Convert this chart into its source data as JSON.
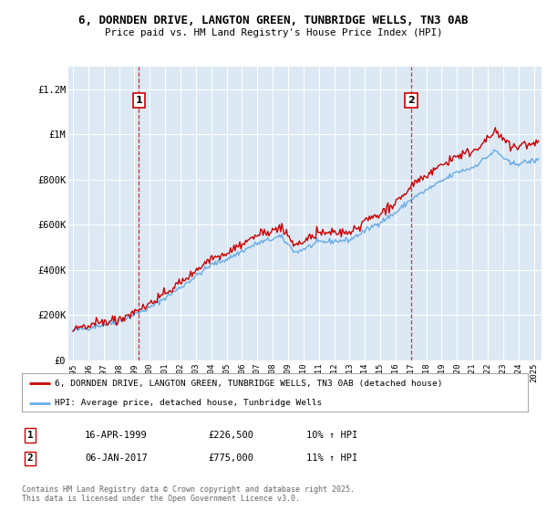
{
  "title1": "6, DORNDEN DRIVE, LANGTON GREEN, TUNBRIDGE WELLS, TN3 0AB",
  "title2": "Price paid vs. HM Land Registry's House Price Index (HPI)",
  "bg_color": "#dce9f5",
  "line1_color": "#cc0000",
  "line2_color": "#6aace6",
  "purchase1_year": 1999.29,
  "purchase1_price": 226500,
  "purchase1_date": "16-APR-1999",
  "purchase1_hpi": "10% ↑ HPI",
  "purchase2_year": 2017.02,
  "purchase2_price": 775000,
  "purchase2_date": "06-JAN-2017",
  "purchase2_hpi": "11% ↑ HPI",
  "legend_label1": "6, DORNDEN DRIVE, LANGTON GREEN, TUNBRIDGE WELLS, TN3 0AB (detached house)",
  "legend_label2": "HPI: Average price, detached house, Tunbridge Wells",
  "footer": "Contains HM Land Registry data © Crown copyright and database right 2025.\nThis data is licensed under the Open Government Licence v3.0.",
  "ylim": [
    0,
    1300000
  ],
  "yticks": [
    0,
    200000,
    400000,
    600000,
    800000,
    1000000,
    1200000
  ],
  "ytick_labels": [
    "£0",
    "£200K",
    "£400K",
    "£600K",
    "£800K",
    "£1M",
    "£1.2M"
  ],
  "xlim_left": 1994.7,
  "xlim_right": 2025.5
}
